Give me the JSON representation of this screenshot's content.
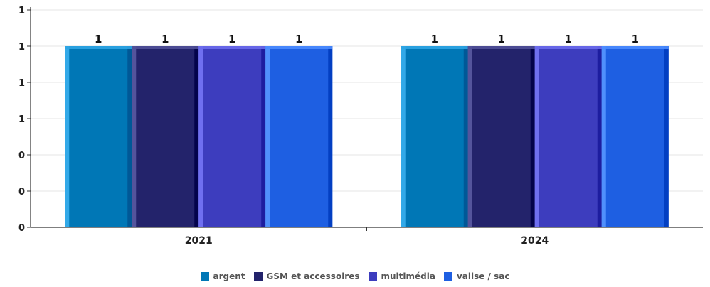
{
  "chart_data": {
    "type": "bar",
    "categories": [
      "2021",
      "2024"
    ],
    "series": [
      {
        "name": "argent",
        "values": [
          1,
          1
        ],
        "color": "#0077b6"
      },
      {
        "name": "GSM et accessoires",
        "values": [
          1,
          1
        ],
        "color": "#23236b"
      },
      {
        "name": "multimédia",
        "values": [
          1,
          1
        ],
        "color": "#3d3dbe"
      },
      {
        "name": "valise / sac",
        "values": [
          1,
          1
        ],
        "color": "#1e5fe2"
      }
    ],
    "y_tick_labels": [
      "0",
      "0",
      "0",
      "1",
      "1",
      "1",
      "1"
    ],
    "ylim": [
      0,
      1.2
    ],
    "grid": true,
    "legend_position": "bottom"
  }
}
